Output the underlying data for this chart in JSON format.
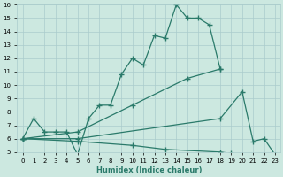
{
  "xlabel": "Humidex (Indice chaleur)",
  "xlim": [
    -0.5,
    23.5
  ],
  "ylim": [
    5,
    16
  ],
  "bg_color": "#cce8e0",
  "grid_color": "#aacccc",
  "line_color": "#2a7a6a",
  "marker": "+",
  "markersize": 4,
  "linewidth": 0.9,
  "lines": [
    {
      "x": [
        0,
        1,
        2,
        3,
        4,
        5,
        6,
        7,
        8,
        9,
        10,
        11,
        12,
        13,
        14,
        15,
        16,
        17,
        18
      ],
      "y": [
        6,
        7.5,
        6.5,
        6.5,
        6.5,
        4.8,
        7.5,
        8.5,
        8.5,
        10.8,
        12.0,
        11.5,
        13.7,
        13.5,
        16.0,
        15.0,
        15.0,
        14.5,
        11.2
      ]
    },
    {
      "x": [
        0,
        5,
        10,
        15,
        18
      ],
      "y": [
        6,
        6.5,
        8.5,
        10.5,
        11.2
      ]
    },
    {
      "x": [
        0,
        5,
        18,
        20,
        21,
        22,
        23
      ],
      "y": [
        6,
        6.0,
        7.5,
        9.5,
        5.8,
        6.0,
        4.8
      ]
    },
    {
      "x": [
        0,
        5,
        10,
        13,
        18,
        19,
        23
      ],
      "y": [
        6,
        5.8,
        5.5,
        5.2,
        5.0,
        4.9,
        4.8
      ]
    }
  ]
}
